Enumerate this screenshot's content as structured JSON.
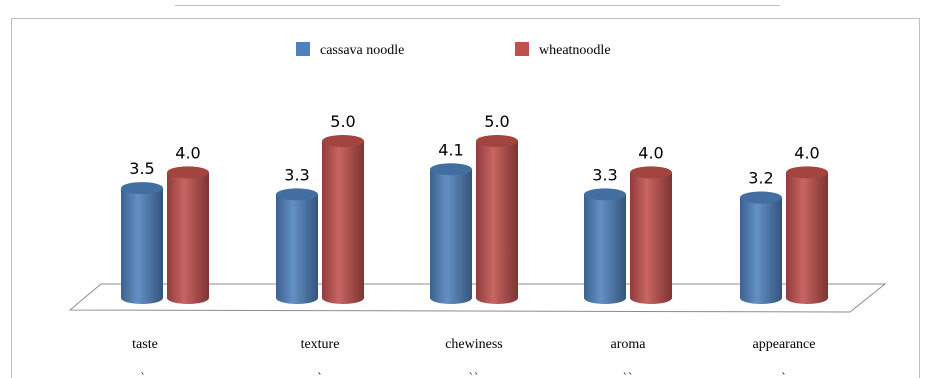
{
  "chart_data": {
    "type": "bar",
    "categories": [
      "taste",
      "texture",
      "chewiness",
      "aroma",
      "appearance"
    ],
    "category_marks": [
      "ˎ",
      "ˎ",
      "ˎˎ",
      "ˎˎ",
      "ˎ"
    ],
    "series": [
      {
        "name": "cassava noodle",
        "color": "#4f81bd",
        "values": [
          3.5,
          3.3,
          4.1,
          3.3,
          3.2
        ],
        "labels": [
          "3.5",
          "3.3",
          "4.1",
          "3.3",
          "3.2"
        ]
      },
      {
        "name": "wheatnoodle",
        "color": "#c0504d",
        "values": [
          4.0,
          5.0,
          5.0,
          4.0,
          4.0
        ],
        "labels": [
          "4.0",
          "5.0",
          "5.0",
          "4.0",
          "4.0"
        ]
      }
    ],
    "ylim": [
      0,
      5
    ],
    "legend_position": "top",
    "grid": false,
    "style": "3d-cylinder"
  }
}
